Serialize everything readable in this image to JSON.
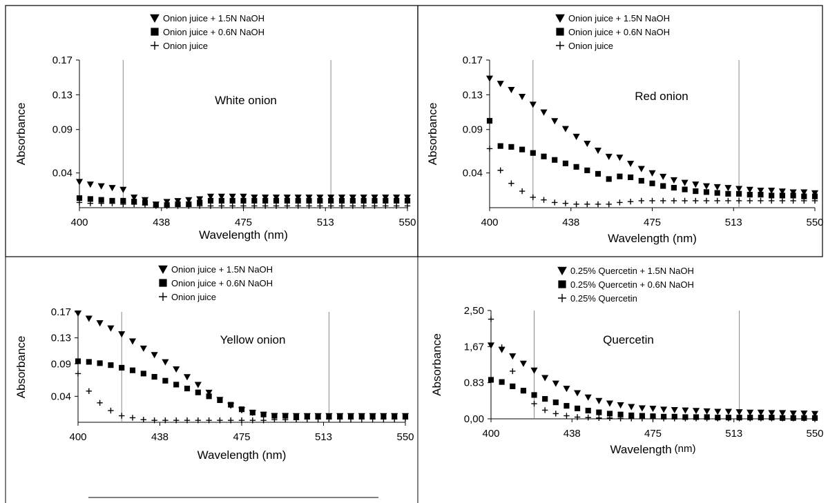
{
  "chart_data": [
    {
      "type": "scatter",
      "title": "White onion",
      "xlabel": "Wavelength (nm)",
      "ylabel": "Absorbance",
      "xlim": [
        400,
        550
      ],
      "ylim": [
        0,
        0.17
      ],
      "xticks": [
        "400",
        "438",
        "475",
        "513",
        "550"
      ],
      "yticks": [
        "0.04",
        "0.09",
        "0.13",
        "0.17"
      ],
      "reference_lines_x": [
        420,
        515
      ],
      "legend": "top-center",
      "x": [
        400,
        405,
        410,
        415,
        420,
        425,
        430,
        435,
        440,
        445,
        450,
        455,
        460,
        465,
        470,
        475,
        480,
        485,
        490,
        495,
        500,
        505,
        510,
        515,
        520,
        525,
        530,
        535,
        540,
        545,
        550
      ],
      "series": [
        {
          "name": "Onion juice + 1.5N NaOH",
          "marker": "triangle-down",
          "values": [
            0.03,
            0.027,
            0.025,
            0.023,
            0.021,
            0.012,
            0.009,
            0.004,
            0.007,
            0.008,
            0.009,
            0.01,
            0.013,
            0.013,
            0.013,
            0.013,
            0.012,
            0.012,
            0.012,
            0.012,
            0.012,
            0.012,
            0.012,
            0.012,
            0.012,
            0.012,
            0.012,
            0.012,
            0.012,
            0.012,
            0.012
          ]
        },
        {
          "name": "Onion juice + 0.6N NaOH",
          "marker": "square",
          "values": [
            0.011,
            0.01,
            0.009,
            0.008,
            0.008,
            0.007,
            0.006,
            0.003,
            0.003,
            0.004,
            0.004,
            0.006,
            0.008,
            0.008,
            0.008,
            0.008,
            0.008,
            0.008,
            0.008,
            0.008,
            0.008,
            0.008,
            0.008,
            0.008,
            0.008,
            0.008,
            0.008,
            0.008,
            0.008,
            0.008,
            0.008
          ]
        },
        {
          "name": "Onion juice",
          "marker": "plus",
          "values": [
            0.006,
            0.005,
            0.005,
            0.005,
            0.004,
            0.004,
            0.003,
            0.002,
            0.002,
            0.002,
            0.002,
            0.002,
            0.002,
            0.002,
            0.002,
            0.002,
            0.002,
            0.002,
            0.002,
            0.002,
            0.002,
            0.002,
            0.002,
            0.002,
            0.002,
            0.002,
            0.002,
            0.002,
            0.002,
            0.002,
            0.002
          ]
        }
      ]
    },
    {
      "type": "scatter",
      "title": "Red onion",
      "xlabel": "Wavelength (nm)",
      "ylabel": "Absorbance",
      "xlim": [
        400,
        550
      ],
      "ylim": [
        0,
        0.17
      ],
      "xticks": [
        "400",
        "438",
        "475",
        "513",
        "550"
      ],
      "yticks": [
        "0.04",
        "0.09",
        "0.13",
        "0.17"
      ],
      "reference_lines_x": [
        420,
        515
      ],
      "legend": "top-center",
      "x": [
        400,
        405,
        410,
        415,
        420,
        425,
        430,
        435,
        440,
        445,
        450,
        455,
        460,
        465,
        470,
        475,
        480,
        485,
        490,
        495,
        500,
        505,
        510,
        515,
        520,
        525,
        530,
        535,
        540,
        545,
        550
      ],
      "series": [
        {
          "name": "Onion juice + 1.5N NaOH",
          "marker": "triangle-down",
          "values": [
            0.149,
            0.143,
            0.136,
            0.128,
            0.119,
            0.11,
            0.1,
            0.091,
            0.082,
            0.074,
            0.066,
            0.059,
            0.058,
            0.051,
            0.045,
            0.04,
            0.036,
            0.032,
            0.029,
            0.027,
            0.025,
            0.024,
            0.023,
            0.022,
            0.021,
            0.02,
            0.02,
            0.019,
            0.018,
            0.018,
            0.017
          ]
        },
        {
          "name": "Onion juice + 0.6N NaOH",
          "marker": "square",
          "values": [
            0.1,
            0.071,
            0.07,
            0.067,
            0.063,
            0.059,
            0.055,
            0.051,
            0.047,
            0.043,
            0.039,
            0.033,
            0.036,
            0.035,
            0.031,
            0.028,
            0.025,
            0.023,
            0.021,
            0.019,
            0.018,
            0.017,
            0.016,
            0.016,
            0.015,
            0.015,
            0.014,
            0.014,
            0.014,
            0.013,
            0.013
          ]
        },
        {
          "name": "Onion juice",
          "marker": "plus",
          "values": [
            0.068,
            0.043,
            0.028,
            0.019,
            0.012,
            0.009,
            0.006,
            0.005,
            0.004,
            0.004,
            0.004,
            0.004,
            0.006,
            0.007,
            0.008,
            0.008,
            0.008,
            0.008,
            0.008,
            0.008,
            0.008,
            0.008,
            0.008,
            0.008,
            0.008,
            0.008,
            0.008,
            0.008,
            0.008,
            0.008,
            0.008
          ]
        }
      ]
    },
    {
      "type": "scatter",
      "title": "Yellow onion",
      "xlabel": "Wavelength (nm)",
      "ylabel": "Absorbance",
      "xlim": [
        400,
        550
      ],
      "ylim": [
        0,
        0.17
      ],
      "xticks": [
        "400",
        "438",
        "475",
        "513",
        "550"
      ],
      "yticks": [
        "0.04",
        "0.09",
        "0.13",
        "0.17"
      ],
      "reference_lines_x": [
        420,
        515
      ],
      "legend": "top-center",
      "x": [
        400,
        405,
        410,
        415,
        420,
        425,
        430,
        435,
        440,
        445,
        450,
        455,
        460,
        465,
        470,
        475,
        480,
        485,
        490,
        495,
        500,
        505,
        510,
        515,
        520,
        525,
        530,
        535,
        540,
        545,
        550
      ],
      "series": [
        {
          "name": "Onion juice + 1.5N NaOH",
          "marker": "triangle-down",
          "values": [
            0.168,
            0.16,
            0.153,
            0.145,
            0.136,
            0.125,
            0.114,
            0.104,
            0.093,
            0.082,
            0.07,
            0.058,
            0.046,
            0.035,
            0.026,
            0.019,
            0.015,
            0.012,
            0.01,
            0.01,
            0.01,
            0.01,
            0.01,
            0.01,
            0.01,
            0.01,
            0.01,
            0.01,
            0.01,
            0.01,
            0.01
          ]
        },
        {
          "name": "Onion juice + 0.6N NaOH",
          "marker": "square",
          "values": [
            0.094,
            0.093,
            0.091,
            0.088,
            0.084,
            0.08,
            0.075,
            0.07,
            0.064,
            0.058,
            0.052,
            0.046,
            0.04,
            0.034,
            0.027,
            0.02,
            0.015,
            0.012,
            0.01,
            0.01,
            0.009,
            0.009,
            0.009,
            0.009,
            0.009,
            0.009,
            0.009,
            0.009,
            0.009,
            0.009,
            0.009
          ]
        },
        {
          "name": "Onion juice",
          "marker": "plus",
          "values": [
            0.075,
            0.048,
            0.03,
            0.018,
            0.01,
            0.007,
            0.004,
            0.003,
            0.003,
            0.003,
            0.003,
            0.003,
            0.003,
            0.003,
            0.003,
            0.003,
            0.003,
            0.003,
            0.004,
            0.004,
            0.004,
            0.005,
            0.005,
            0.005,
            0.005,
            0.005,
            0.005,
            0.005,
            0.005,
            0.005,
            0.005
          ]
        }
      ]
    },
    {
      "type": "scatter",
      "title": "Quercetin",
      "xlabel": "Wavelength",
      "xlabel_unit": "(nm)",
      "ylabel": "Absorbance",
      "xlim": [
        400,
        550
      ],
      "ylim": [
        0,
        2.5
      ],
      "xticks": [
        "400",
        "438",
        "475",
        "513",
        "550"
      ],
      "yticks": [
        "0,00",
        "0.83",
        "1,67",
        "2,50"
      ],
      "reference_lines_x": [
        420,
        515
      ],
      "legend": "top-center",
      "x": [
        400,
        405,
        410,
        415,
        420,
        425,
        430,
        435,
        440,
        445,
        450,
        455,
        460,
        465,
        470,
        475,
        480,
        485,
        490,
        495,
        500,
        505,
        510,
        515,
        520,
        525,
        530,
        535,
        540,
        545,
        550
      ],
      "series": [
        {
          "name": "0.25% Quercetin + 1.5N NaOH",
          "marker": "triangle-down",
          "values": [
            1.7,
            1.6,
            1.45,
            1.28,
            1.12,
            0.95,
            0.82,
            0.7,
            0.6,
            0.5,
            0.42,
            0.36,
            0.32,
            0.28,
            0.25,
            0.24,
            0.22,
            0.21,
            0.2,
            0.19,
            0.18,
            0.17,
            0.17,
            0.16,
            0.15,
            0.15,
            0.14,
            0.14,
            0.13,
            0.13,
            0.12
          ]
        },
        {
          "name": "0.25% Quercetin + 0.6N NaOH",
          "marker": "square",
          "values": [
            0.9,
            0.85,
            0.75,
            0.65,
            0.55,
            0.46,
            0.38,
            0.3,
            0.24,
            0.19,
            0.15,
            0.12,
            0.1,
            0.08,
            0.07,
            0.06,
            0.05,
            0.05,
            0.04,
            0.04,
            0.04,
            0.03,
            0.03,
            0.03,
            0.03,
            0.03,
            0.03,
            0.02,
            0.02,
            0.02,
            0.02
          ]
        },
        {
          "name": "0.25% Quercetin",
          "marker": "plus",
          "values": [
            2.3,
            1.65,
            1.1,
            0.65,
            0.35,
            0.2,
            0.12,
            0.07,
            0.04,
            0.03,
            0.02,
            0.02,
            0.01,
            0.01,
            0.01,
            0.01,
            0.01,
            0.01,
            0.01,
            0.01,
            0.01,
            0.01,
            0.01,
            0.01,
            0.01,
            0.01,
            0.01,
            0.01,
            0.01,
            0.01,
            0.01
          ]
        }
      ]
    }
  ]
}
